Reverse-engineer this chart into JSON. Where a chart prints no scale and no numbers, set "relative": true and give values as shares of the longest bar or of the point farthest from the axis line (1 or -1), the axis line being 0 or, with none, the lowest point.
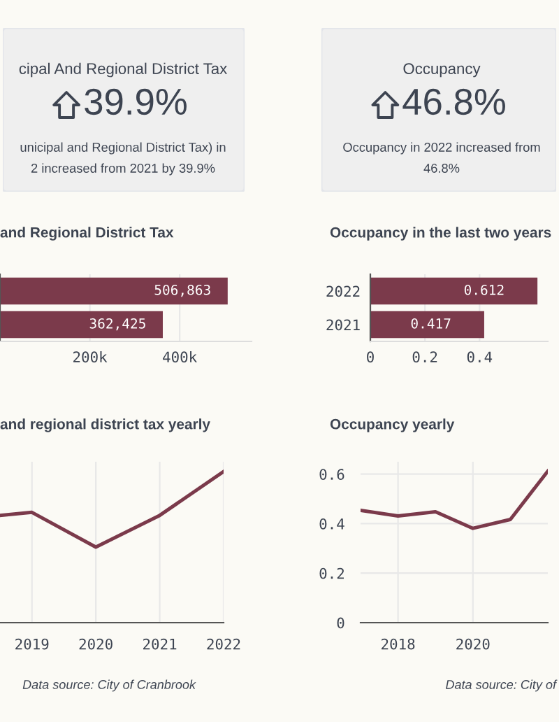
{
  "chart_data": [
    {
      "type": "other",
      "title": "cipal And Regional District Tax",
      "annotations": [
        "39.9%",
        "unicipal and Regional District Tax) in",
        "2 increased from 2021 by 39.9%"
      ]
    },
    {
      "type": "other",
      "title": "Occupancy",
      "annotations": [
        "46.8%",
        "Occupancy in 2022 increased from",
        "46.8%"
      ]
    },
    {
      "type": "bar",
      "orientation": "horizontal",
      "title": "and Regional District Tax",
      "categories": [
        null,
        null
      ],
      "values": [
        506863,
        362425
      ],
      "color": "#7b3a4b",
      "data_labels": true,
      "value_labels": [
        "506,863",
        "362,425"
      ],
      "xlim": [
        0,
        560000
      ],
      "xticks": [
        {
          "value": 200000,
          "label": "200k"
        },
        {
          "value": 400000,
          "label": "400k"
        }
      ],
      "grid": "x"
    },
    {
      "type": "bar",
      "orientation": "horizontal",
      "title": "Occupancy in the last two years",
      "categories": [
        "2022",
        "2021"
      ],
      "values": [
        0.612,
        0.417
      ],
      "color": "#7b3a4b",
      "data_labels": true,
      "value_labels": [
        "0.612",
        "0.417"
      ],
      "xlim": [
        0,
        0.65
      ],
      "xticks": [
        {
          "value": 0,
          "label": "0"
        },
        0.2,
        0.4
      ],
      "grid": "x"
    },
    {
      "type": "line",
      "title": "and regional district tax yearly",
      "x": [
        2018.5,
        2019,
        2020,
        2021,
        2022
      ],
      "relative": true,
      "series": [
        {
          "color": "#7b3a4b",
          "values": [
            0.71,
            0.73,
            0.5,
            0.71,
            1
          ]
        }
      ],
      "xlim": [
        2018.5,
        2022
      ],
      "xticks": [
        2019,
        2020,
        2021,
        2022
      ],
      "grid": "x",
      "annotations": [
        "Data source: City of Cranbrook"
      ]
    },
    {
      "type": "line",
      "title": "Occupancy yearly",
      "x": [
        2017,
        2018,
        2019,
        2020,
        2021,
        2022
      ],
      "series": [
        {
          "color": "#7b3a4b",
          "values": [
            0.454,
            0.431,
            0.448,
            0.381,
            0.417,
            0.612
          ]
        }
      ],
      "xlim": [
        2017,
        2022
      ],
      "xticks": [
        2018,
        2020
      ],
      "ylim": [
        0,
        0.65
      ],
      "yticks": [
        0,
        0.2,
        0.4,
        0.6
      ],
      "grid": true,
      "annotations": [
        "Data source: City of"
      ]
    }
  ]
}
